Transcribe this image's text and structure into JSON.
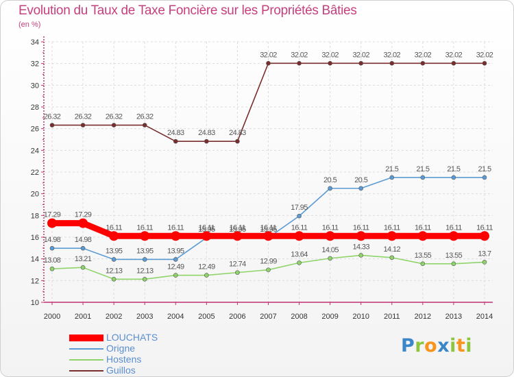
{
  "header": {
    "title": "Evolution du Taux de Taxe Foncière sur les Propriétés Bâties",
    "unit": "(en %)"
  },
  "chart_data": {
    "type": "line",
    "title": "Evolution du Taux de Taxe Foncière sur les Propriétés Bâties",
    "ylabel": "(en %)",
    "xlabel": "",
    "ylim": [
      10,
      34
    ],
    "yticks": [
      10,
      12,
      14,
      16,
      18,
      20,
      22,
      24,
      26,
      28,
      30,
      32,
      34
    ],
    "categories": [
      "2000",
      "2001",
      "2002",
      "2003",
      "2004",
      "2005",
      "2006",
      "2007",
      "2008",
      "2009",
      "2010",
      "2011",
      "2012",
      "2013",
      "2014"
    ],
    "series": [
      {
        "name": "LOUCHATS",
        "color": "#ff0000",
        "values": [
          17.29,
          17.29,
          16.11,
          16.11,
          16.11,
          16.11,
          16.11,
          16.11,
          16.11,
          16.11,
          16.11,
          16.11,
          16.11,
          16.11,
          16.11
        ],
        "labels": [
          "17.29",
          "17.29",
          "16.11",
          "16.11",
          "16.11",
          "16.11",
          "16.11",
          "16.11",
          "16.11",
          "16.11",
          "16.11",
          "16.11",
          "16.11",
          "16.11",
          "16.11"
        ]
      },
      {
        "name": "Origne",
        "color": "#5b9bd5",
        "values": [
          14.98,
          14.98,
          13.95,
          13.95,
          13.95,
          15.95,
          15.95,
          15.95,
          17.95,
          20.5,
          20.5,
          21.5,
          21.5,
          21.5,
          21.5
        ],
        "labels": [
          "14.98",
          "14.98",
          "13.95",
          "13.95",
          "13.95",
          "15.95",
          "15.95",
          "15.95",
          "17.95",
          "20.5",
          "20.5",
          "21.5",
          "21.5",
          "21.5",
          "21.5"
        ]
      },
      {
        "name": "Hostens",
        "color": "#8fd46a",
        "values": [
          13.08,
          13.21,
          12.13,
          12.13,
          12.49,
          12.49,
          12.74,
          12.99,
          13.64,
          14.05,
          14.33,
          14.12,
          13.55,
          13.55,
          13.7
        ],
        "labels": [
          "13.08",
          "13.21",
          "12.13",
          "12.13",
          "12.49",
          "12.49",
          "12.74",
          "12.99",
          "13.64",
          "14.05",
          "14.33",
          "14.12",
          "13.55",
          "13.55",
          "13.7"
        ]
      },
      {
        "name": "Guillos",
        "color": "#7a2d2d",
        "values": [
          26.32,
          26.32,
          26.32,
          26.32,
          24.83,
          24.83,
          24.83,
          32.02,
          32.02,
          32.02,
          32.02,
          32.02,
          32.02,
          32.02,
          32.02
        ],
        "labels": [
          "26.32",
          "26.32",
          "26.32",
          "26.32",
          "24.83",
          "24.83",
          "24.83",
          "32.02",
          "32.02",
          "32.02",
          "32.02",
          "32.02",
          "32.02",
          "32.02",
          "32.02"
        ]
      }
    ],
    "legend": [
      "LOUCHATS",
      "Origne",
      "Hostens",
      "Guillos"
    ],
    "legend_position": "bottom-left",
    "grid": true
  },
  "legend": {
    "items": [
      {
        "label": "LOUCHATS",
        "color": "#ff0000"
      },
      {
        "label": "Origne",
        "color": "#5b9bd5"
      },
      {
        "label": "Hostens",
        "color": "#8fd46a"
      },
      {
        "label": "Guillos",
        "color": "#7a2d2d"
      }
    ]
  },
  "logo": {
    "text": "Proxiti",
    "letters": [
      {
        "ch": "P",
        "color": "#3a86c8"
      },
      {
        "ch": "r",
        "color": "#8cc63f"
      },
      {
        "ch": "o",
        "color": "#f7941d"
      },
      {
        "ch": "x",
        "color": "#3a86c8"
      },
      {
        "ch": "i",
        "color": "#8cc63f"
      },
      {
        "ch": "t",
        "color": "#f7941d"
      },
      {
        "ch": "i",
        "color": "#8cc63f"
      }
    ]
  }
}
